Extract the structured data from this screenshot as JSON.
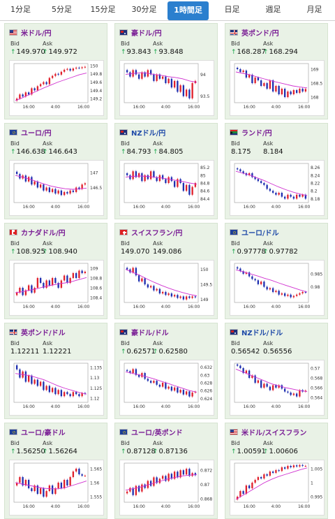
{
  "tabs": [
    {
      "label": "1分足",
      "active": false
    },
    {
      "label": "5分足",
      "active": false
    },
    {
      "label": "15分足",
      "active": false
    },
    {
      "label": "30分足",
      "active": false
    },
    {
      "label": "1時間足",
      "active": true
    },
    {
      "label": "日足",
      "active": false
    },
    {
      "label": "週足",
      "active": false
    },
    {
      "label": "月足",
      "active": false
    }
  ],
  "bid_label": "Bid",
  "ask_label": "Ask",
  "up_symbol": "↑",
  "colors": {
    "purple_name": "#7a1e95",
    "blue_name": "#1f4aa8",
    "up_arrow": "#1aa84c",
    "card_bg": "#e9f2e6",
    "tab_active": "#2b7fce",
    "bull": "#e0202c",
    "bear": "#2030b0",
    "ma": "#d030d0"
  },
  "cards": [
    {
      "name": "米ドル/円",
      "flag": "us",
      "name_color": "purple",
      "bid": "149.970",
      "ask": "149.972",
      "bid_up": true,
      "ask_up": true,
      "x_ticks": [
        "16:00",
        "4:00",
        "16:00"
      ],
      "y_ticks": [
        "150",
        "149.8",
        "149.6",
        "149.4",
        "149.2"
      ],
      "y_range": [
        149.1,
        150.05
      ],
      "closes": [
        149.2,
        149.3,
        149.25,
        149.35,
        149.3,
        149.45,
        149.4,
        149.5,
        149.55,
        149.6,
        149.55,
        149.7,
        149.75,
        149.8,
        149.78,
        149.85,
        149.9,
        149.92,
        149.88,
        149.93,
        149.95,
        149.94,
        149.96,
        149.97
      ],
      "ma": [
        149.15,
        149.22,
        149.3,
        149.38,
        149.46,
        149.53,
        149.6,
        149.66,
        149.72,
        149.78,
        149.82
      ]
    },
    {
      "name": "豪ドル/円",
      "flag": "au",
      "name_color": "purple",
      "bid": "93.843",
      "ask": "93.848",
      "bid_up": true,
      "ask_up": true,
      "x_ticks": [
        "16:00",
        "4:00",
        "16:00"
      ],
      "y_ticks": [
        "94",
        "93.5"
      ],
      "y_range": [
        93.35,
        94.25
      ],
      "closes": [
        94.05,
        93.95,
        94.1,
        94.0,
        93.9,
        94.05,
        93.95,
        94.1,
        94.0,
        93.85,
        94.0,
        93.9,
        93.95,
        93.8,
        93.9,
        93.7,
        93.85,
        93.6,
        93.75,
        93.5,
        93.65,
        93.45,
        93.8,
        93.85
      ],
      "ma": [
        94.0,
        94.02,
        94.04,
        94.03,
        94.0,
        93.98,
        93.95,
        93.93,
        93.9,
        93.85,
        93.82
      ]
    },
    {
      "name": "英ポンド/円",
      "flag": "gb",
      "name_color": "purple",
      "bid": "168.287",
      "ask": "168.294",
      "bid_up": true,
      "ask_up": true,
      "x_ticks": [
        "16:00",
        "4:00",
        "16:00"
      ],
      "y_ticks": [
        "169",
        "168.5",
        "168"
      ],
      "y_range": [
        167.8,
        169.2
      ],
      "closes": [
        169.0,
        168.9,
        168.95,
        168.7,
        168.8,
        168.5,
        168.7,
        168.6,
        168.4,
        168.5,
        168.3,
        168.6,
        168.2,
        168.4,
        168.1,
        168.3,
        168.0,
        168.2,
        168.1,
        168.25,
        168.15,
        168.3,
        168.2,
        168.29
      ],
      "ma": [
        168.9,
        168.85,
        168.8,
        168.72,
        168.65,
        168.58,
        168.52,
        168.46,
        168.4,
        168.36,
        168.33
      ]
    },
    {
      "name": "ユーロ/円",
      "flag": "eu",
      "name_color": "purple",
      "bid": "146.638",
      "ask": "146.643",
      "bid_up": true,
      "ask_up": true,
      "x_ticks": [
        "16:00",
        "4:00",
        "16:00"
      ],
      "y_ticks": [
        "147",
        "146.5"
      ],
      "y_range": [
        146.0,
        147.3
      ],
      "closes": [
        146.95,
        146.8,
        146.9,
        146.7,
        146.85,
        146.6,
        146.7,
        146.5,
        146.6,
        146.4,
        146.5,
        146.35,
        146.45,
        146.3,
        146.4,
        146.25,
        146.35,
        146.3,
        146.4,
        146.35,
        146.5,
        146.45,
        146.6,
        146.64
      ],
      "ma": [
        146.9,
        146.85,
        146.78,
        146.7,
        146.62,
        146.55,
        146.5,
        146.46,
        146.44,
        146.45,
        146.48
      ]
    },
    {
      "name": "NZドル/円",
      "flag": "nz",
      "name_color": "blue",
      "bid": "84.793",
      "ask": "84.805",
      "bid_up": true,
      "ask_up": true,
      "x_ticks": [
        "16:00",
        "4:00",
        "16:00"
      ],
      "y_ticks": [
        "85.2",
        "85",
        "84.8",
        "84.6",
        "84.4"
      ],
      "y_range": [
        84.3,
        85.3
      ],
      "closes": [
        85.0,
        84.9,
        85.1,
        84.95,
        85.05,
        84.85,
        85.0,
        84.9,
        85.1,
        84.95,
        84.85,
        85.0,
        84.9,
        84.8,
        84.95,
        84.85,
        84.7,
        84.9,
        84.8,
        84.6,
        84.75,
        84.5,
        84.7,
        84.8
      ],
      "ma": [
        84.95,
        84.97,
        84.98,
        84.97,
        84.95,
        84.93,
        84.9,
        84.87,
        84.84,
        84.8,
        84.77
      ]
    },
    {
      "name": "ランド/円",
      "flag": "za",
      "name_color": "purple",
      "bid": "8.175",
      "ask": "8.184",
      "bid_up": false,
      "ask_up": false,
      "x_ticks": [
        "16:00",
        "4:00",
        "16:00"
      ],
      "y_ticks": [
        "8.26",
        "8.24",
        "8.22",
        "8.2",
        "8.18"
      ],
      "y_range": [
        8.17,
        8.27
      ],
      "closes": [
        8.255,
        8.25,
        8.245,
        8.24,
        8.245,
        8.235,
        8.23,
        8.225,
        8.22,
        8.215,
        8.205,
        8.2,
        8.195,
        8.19,
        8.195,
        8.185,
        8.18,
        8.19,
        8.185,
        8.18,
        8.19,
        8.185,
        8.19,
        8.18
      ],
      "ma": [
        8.25,
        8.245,
        8.24,
        8.233,
        8.226,
        8.218,
        8.21,
        8.203,
        8.197,
        8.192,
        8.188
      ]
    },
    {
      "name": "カナダドル/円",
      "flag": "ca",
      "name_color": "purple",
      "bid": "108.925",
      "ask": "108.940",
      "bid_up": true,
      "ask_up": true,
      "x_ticks": [
        "16:00",
        "4:00",
        "16:00"
      ],
      "y_ticks": [
        "109",
        "108.8",
        "108.6",
        "108.4"
      ],
      "y_range": [
        108.3,
        109.1
      ],
      "closes": [
        108.5,
        108.6,
        108.45,
        108.55,
        108.65,
        108.5,
        108.6,
        108.8,
        108.7,
        108.6,
        108.75,
        108.65,
        108.8,
        108.7,
        108.6,
        108.75,
        108.85,
        108.7,
        108.8,
        108.9,
        108.8,
        108.95,
        108.9,
        108.93
      ],
      "ma": [
        108.5,
        108.52,
        108.55,
        108.58,
        108.62,
        108.65,
        108.68,
        108.7,
        108.73,
        108.77,
        108.81
      ]
    },
    {
      "name": "スイスフラン/円",
      "flag": "ch",
      "name_color": "purple",
      "bid": "149.070",
      "ask": "149.086",
      "bid_up": false,
      "ask_up": false,
      "x_ticks": [
        "16:00",
        "4:00",
        "16:00"
      ],
      "y_ticks": [
        "150",
        "149.5",
        "149"
      ],
      "y_range": [
        148.9,
        150.2
      ],
      "closes": [
        150.0,
        149.9,
        150.05,
        149.8,
        149.6,
        149.7,
        149.5,
        149.4,
        149.45,
        149.3,
        149.35,
        149.2,
        149.25,
        149.15,
        149.2,
        149.1,
        149.15,
        149.05,
        149.1,
        149.0,
        149.1,
        149.05,
        149.1,
        149.07
      ],
      "ma": [
        150.0,
        149.9,
        149.8,
        149.68,
        149.57,
        149.47,
        149.38,
        149.3,
        149.23,
        149.17,
        149.12
      ]
    },
    {
      "name": "ユーロ/ドル",
      "flag": "eu",
      "name_color": "blue",
      "bid": "0.97778",
      "ask": "0.97782",
      "bid_up": true,
      "ask_up": true,
      "x_ticks": [
        "16:00",
        "4:00",
        "16:00"
      ],
      "y_ticks": [
        "0.985",
        "0.98"
      ],
      "y_range": [
        0.974,
        0.989
      ],
      "closes": [
        0.987,
        0.986,
        0.985,
        0.9855,
        0.984,
        0.983,
        0.9825,
        0.981,
        0.982,
        0.98,
        0.979,
        0.9795,
        0.978,
        0.9785,
        0.977,
        0.9775,
        0.9765,
        0.977,
        0.976,
        0.9765,
        0.977,
        0.9775,
        0.978,
        0.9778
      ],
      "ma": [
        0.9865,
        0.9858,
        0.985,
        0.9842,
        0.9833,
        0.9825,
        0.9815,
        0.9806,
        0.9797,
        0.9788,
        0.978
      ]
    },
    {
      "name": "英ポンド/ドル",
      "flag": "gb",
      "name_color": "purple",
      "bid": "1.12211",
      "ask": "1.12221",
      "bid_up": false,
      "ask_up": false,
      "x_ticks": [
        "16:00",
        "4:00",
        "16:00"
      ],
      "y_ticks": [
        "1.135",
        "1.13",
        "1.125",
        "1.12"
      ],
      "y_range": [
        1.118,
        1.137
      ],
      "closes": [
        1.134,
        1.13,
        1.133,
        1.128,
        1.131,
        1.127,
        1.129,
        1.126,
        1.128,
        1.124,
        1.126,
        1.123,
        1.125,
        1.122,
        1.124,
        1.121,
        1.123,
        1.122,
        1.121,
        1.123,
        1.122,
        1.121,
        1.1225,
        1.1221
      ],
      "ma": [
        1.132,
        1.1315,
        1.131,
        1.13,
        1.129,
        1.1275,
        1.126,
        1.1248,
        1.1238,
        1.1228,
        1.122
      ]
    },
    {
      "name": "豪ドル/ドル",
      "flag": "au",
      "name_color": "purple",
      "bid": "0.62571",
      "ask": "0.62580",
      "bid_up": true,
      "ask_up": true,
      "x_ticks": [
        "16:00",
        "4:00",
        "16:00"
      ],
      "y_ticks": [
        "0.632",
        "0.63",
        "0.628",
        "0.626",
        "0.624"
      ],
      "y_range": [
        0.623,
        0.633
      ],
      "closes": [
        0.631,
        0.6305,
        0.6315,
        0.63,
        0.6295,
        0.6305,
        0.629,
        0.6285,
        0.628,
        0.6285,
        0.6275,
        0.627,
        0.628,
        0.6265,
        0.627,
        0.626,
        0.6268,
        0.6255,
        0.6262,
        0.625,
        0.6258,
        0.6245,
        0.6255,
        0.6257
      ],
      "ma": [
        0.6308,
        0.6304,
        0.63,
        0.6295,
        0.629,
        0.6284,
        0.6278,
        0.6272,
        0.6266,
        0.626,
        0.6256
      ]
    },
    {
      "name": "NZドル/ドル",
      "flag": "nz",
      "name_color": "blue",
      "bid": "0.56542",
      "ask": "0.56556",
      "bid_up": false,
      "ask_up": false,
      "x_ticks": [
        "16:00",
        "4:00",
        "16:00"
      ],
      "y_ticks": [
        "0.57",
        "0.568",
        "0.566",
        "0.564"
      ],
      "y_range": [
        0.563,
        0.571
      ],
      "closes": [
        0.5705,
        0.57,
        0.569,
        0.5695,
        0.568,
        0.5685,
        0.567,
        0.5675,
        0.566,
        0.5668,
        0.5662,
        0.5655,
        0.5665,
        0.566,
        0.5665,
        0.5658,
        0.5652,
        0.565,
        0.5645,
        0.5648,
        0.5642,
        0.5655,
        0.5652,
        0.5654
      ],
      "ma": [
        0.5698,
        0.5692,
        0.5686,
        0.568,
        0.5674,
        0.5668,
        0.5664,
        0.566,
        0.5657,
        0.5654,
        0.5652
      ]
    },
    {
      "name": "ユーロ/豪ドル",
      "flag": "eu",
      "name_color": "purple",
      "bid": "1.56250",
      "ask": "1.56264",
      "bid_up": true,
      "ask_up": true,
      "x_ticks": [
        "16:00",
        "4:00",
        "16:00"
      ],
      "y_ticks": [
        "1.565",
        "1.56",
        "1.555"
      ],
      "y_range": [
        1.553,
        1.567
      ],
      "closes": [
        1.56,
        1.562,
        1.559,
        1.561,
        1.558,
        1.557,
        1.559,
        1.556,
        1.558,
        1.555,
        1.557,
        1.559,
        1.556,
        1.558,
        1.56,
        1.558,
        1.561,
        1.559,
        1.562,
        1.564,
        1.565,
        1.563,
        1.5625,
        1.5625
      ],
      "ma": [
        1.56,
        1.5595,
        1.559,
        1.5585,
        1.558,
        1.5578,
        1.5578,
        1.5582,
        1.559,
        1.5598,
        1.5606
      ]
    },
    {
      "name": "ユーロ/英ポンド",
      "flag": "eu",
      "name_color": "purple",
      "bid": "0.87128",
      "ask": "0.87136",
      "bid_up": true,
      "ask_up": true,
      "x_ticks": [
        "16:00",
        "4:00",
        "16:00"
      ],
      "y_ticks": [
        "0.872",
        "0.87",
        "0.868"
      ],
      "y_range": [
        0.8675,
        0.873
      ],
      "closes": [
        0.869,
        0.8695,
        0.8685,
        0.8698,
        0.869,
        0.87,
        0.8695,
        0.8705,
        0.8698,
        0.871,
        0.8702,
        0.8708,
        0.8712,
        0.8705,
        0.8715,
        0.8708,
        0.8718,
        0.871,
        0.872,
        0.8714,
        0.8722,
        0.8712,
        0.8716,
        0.8713
      ],
      "ma": [
        0.8692,
        0.8694,
        0.8696,
        0.8699,
        0.8702,
        0.8705,
        0.8708,
        0.871,
        0.8712,
        0.8713,
        0.8714
      ]
    },
    {
      "name": "米ドル/スイスフラン",
      "flag": "us",
      "name_color": "purple",
      "bid": "1.00591",
      "ask": "1.00606",
      "bid_up": true,
      "ask_up": true,
      "x_ticks": [
        "16:00",
        "4:00",
        "16:00"
      ],
      "y_ticks": [
        "1.005",
        "1",
        "0.995"
      ],
      "y_range": [
        0.993,
        1.007
      ],
      "closes": [
        0.995,
        0.997,
        0.996,
        0.999,
        0.998,
        1.0,
        1.001,
        1.002,
        1.0015,
        1.003,
        1.0025,
        1.004,
        1.0035,
        1.0045,
        1.0042,
        1.0055,
        1.005,
        1.006,
        1.0055,
        1.0062,
        1.0058,
        1.0063,
        1.006,
        1.006
      ],
      "ma": [
        0.994,
        0.9955,
        0.997,
        0.9985,
        1.0,
        1.0012,
        1.0022,
        1.003,
        1.0038,
        1.0046,
        1.0053
      ]
    }
  ]
}
